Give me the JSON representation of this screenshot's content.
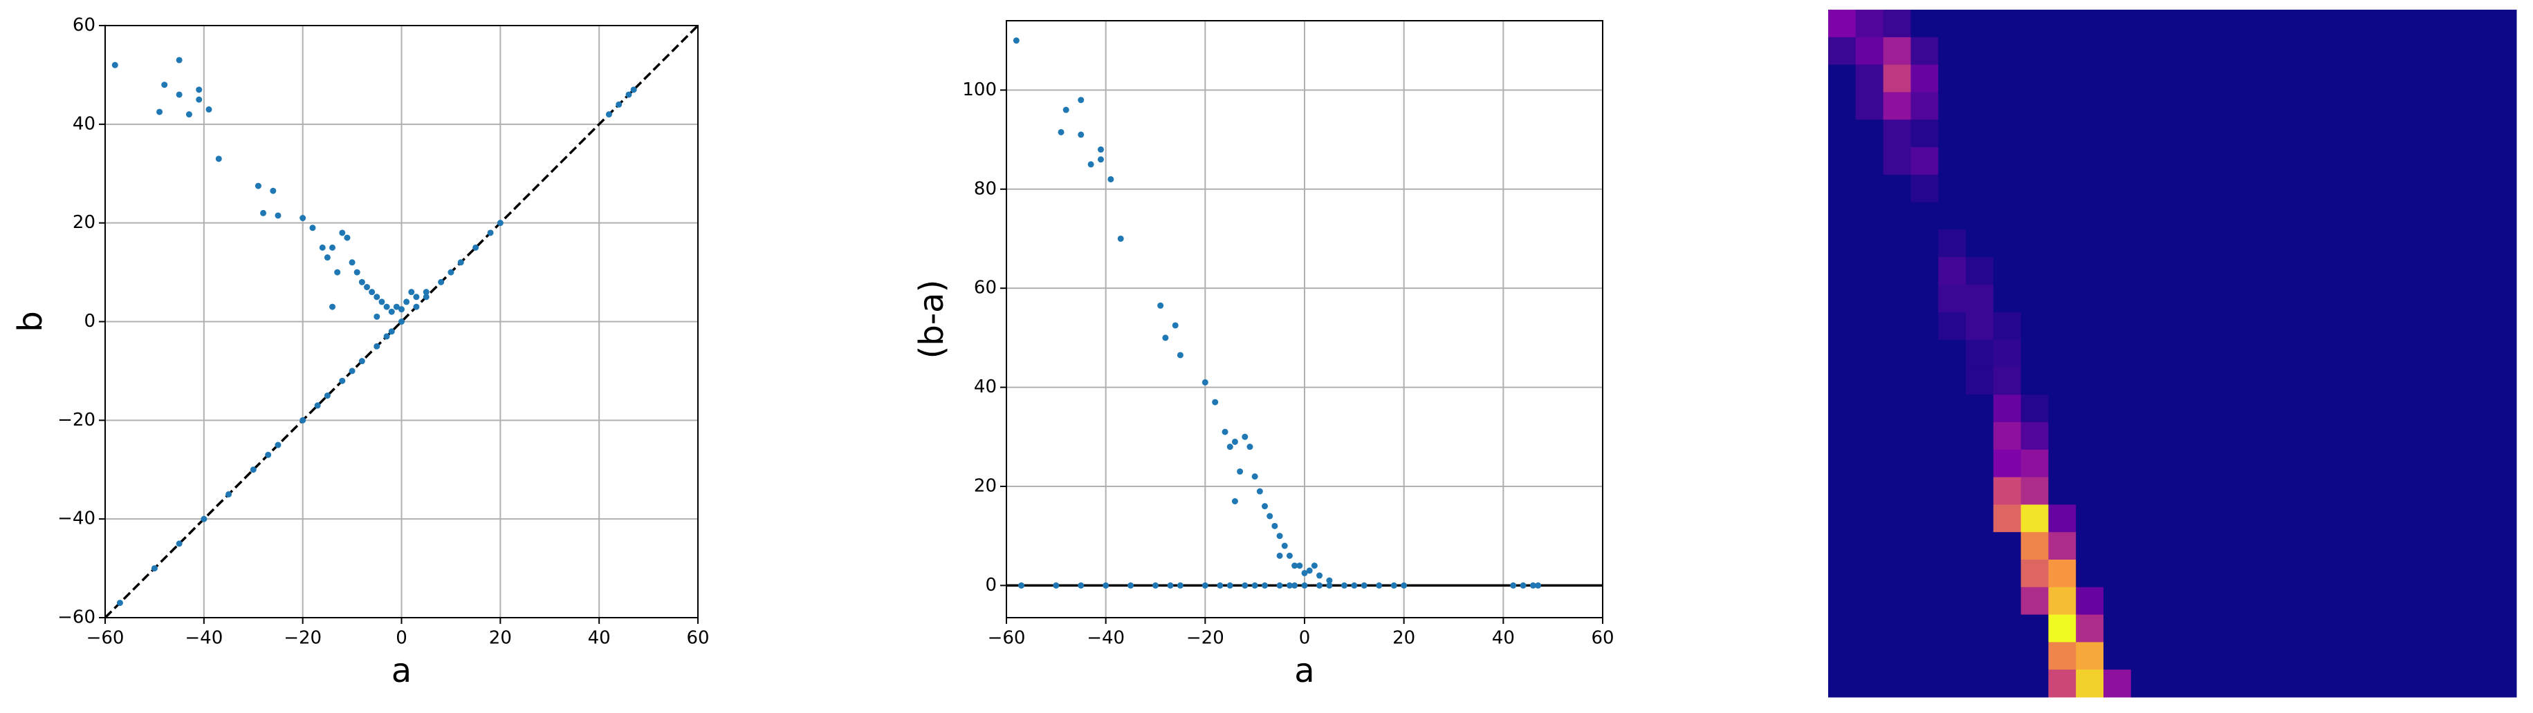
{
  "chart_data": [
    {
      "type": "scatter",
      "xlabel": "a",
      "ylabel": "b",
      "color": "#1f77b4",
      "grid": true,
      "diagonal": true,
      "xlim": [
        -60,
        60
      ],
      "ylim": [
        -60,
        60
      ],
      "xticks": [
        {
          "value": -60,
          "label": "−60"
        },
        {
          "value": -40,
          "label": "−40"
        },
        {
          "value": -20,
          "label": "−20"
        },
        0,
        20,
        40,
        60
      ],
      "yticks": [
        {
          "value": -60,
          "label": "−60"
        },
        {
          "value": -40,
          "label": "−40"
        },
        {
          "value": -20,
          "label": "−20"
        },
        0,
        20,
        40,
        60
      ],
      "x": [
        -58,
        -49,
        -48,
        -45,
        -45,
        -43,
        -41,
        -41,
        -39,
        -37,
        -29,
        -28,
        -26,
        -25,
        -20,
        -18,
        -16,
        -15,
        -14,
        -13,
        -12,
        -11,
        -14,
        -10,
        -9,
        -8,
        -7,
        -6,
        -5,
        -4,
        -3,
        -2,
        -1,
        0,
        1,
        2,
        3,
        5,
        -5,
        -2,
        -57,
        -50,
        -45,
        -40,
        -35,
        -30,
        -27,
        -25,
        -20,
        -17,
        -15,
        -12,
        -10,
        -8,
        -5,
        -3,
        0,
        3,
        5,
        8,
        10,
        12,
        15,
        18,
        20,
        42,
        44,
        46,
        47
      ],
      "y": [
        52,
        42.5,
        48,
        53,
        46,
        42,
        47,
        45,
        43,
        33,
        27.5,
        22,
        26.5,
        21.5,
        21,
        19,
        15,
        13,
        15,
        10,
        18,
        17,
        3,
        12,
        10,
        8,
        7,
        6,
        5,
        4,
        3,
        2,
        3,
        2.5,
        4,
        6,
        5,
        6,
        1,
        -2,
        -57,
        -50,
        -45,
        -40,
        -35,
        -30,
        -27,
        -25,
        -20,
        -17,
        -15,
        -12,
        -10,
        -8,
        -5,
        -3,
        0,
        3,
        5,
        8,
        10,
        12,
        15,
        18,
        20,
        42,
        44,
        46,
        47
      ]
    },
    {
      "type": "scatter",
      "xlabel": "a",
      "ylabel": "(b-a)",
      "color": "#1f77b4",
      "grid": true,
      "hline": 0,
      "xlim": [
        -60,
        60
      ],
      "ylim": [
        -6.5,
        114
      ],
      "xticks": [
        {
          "value": -60,
          "label": "−60"
        },
        {
          "value": -40,
          "label": "−40"
        },
        {
          "value": -20,
          "label": "−20"
        },
        0,
        20,
        40,
        60
      ],
      "yticks": [
        0,
        20,
        40,
        60,
        80,
        100
      ],
      "x": [
        -58,
        -49,
        -48,
        -45,
        -45,
        -43,
        -41,
        -41,
        -39,
        -37,
        -29,
        -28,
        -26,
        -25,
        -20,
        -18,
        -16,
        -15,
        -14,
        -13,
        -12,
        -11,
        -14,
        -10,
        -9,
        -8,
        -7,
        -6,
        -5,
        -4,
        -3,
        -2,
        -1,
        0,
        1,
        2,
        3,
        5,
        -5,
        -2,
        -57,
        -50,
        -45,
        -40,
        -35,
        -30,
        -27,
        -25,
        -20,
        -17,
        -15,
        -12,
        -10,
        -8,
        -5,
        -3,
        0,
        3,
        5,
        8,
        10,
        12,
        15,
        18,
        20,
        42,
        44,
        46,
        47
      ],
      "y": [
        110,
        91.5,
        96,
        98,
        91,
        85,
        88,
        86,
        82,
        70,
        56.5,
        50,
        52.5,
        46.5,
        41,
        37,
        31,
        28,
        29,
        23,
        30,
        28,
        17,
        22,
        19,
        16,
        14,
        12,
        10,
        8,
        6,
        4,
        4,
        2.5,
        3,
        4,
        2,
        1,
        6,
        0,
        0,
        0,
        0,
        0,
        0,
        0,
        0,
        0,
        0,
        0,
        0,
        0,
        0,
        0,
        0,
        0,
        0,
        0,
        0,
        0,
        0,
        0,
        0,
        0,
        0,
        0,
        0,
        0,
        0
      ]
    },
    {
      "type": "heatmap",
      "zlim": [
        0,
        1
      ],
      "colormap": [
        "#0d0887",
        "#7e03a8",
        "#cc4778",
        "#f89540",
        "#f0f921"
      ],
      "values": [
        [
          0.25,
          0.15,
          0.1,
          0,
          0,
          0,
          0,
          0,
          0,
          0,
          0,
          0,
          0,
          0,
          0,
          0,
          0,
          0,
          0,
          0,
          0,
          0,
          0,
          0,
          0
        ],
        [
          0.1,
          0.2,
          0.35,
          0.1,
          0,
          0,
          0,
          0,
          0,
          0,
          0,
          0,
          0,
          0,
          0,
          0,
          0,
          0,
          0,
          0,
          0,
          0,
          0,
          0,
          0
        ],
        [
          0,
          0.1,
          0.45,
          0.2,
          0,
          0,
          0,
          0,
          0,
          0,
          0,
          0,
          0,
          0,
          0,
          0,
          0,
          0,
          0,
          0,
          0,
          0,
          0,
          0,
          0
        ],
        [
          0,
          0.1,
          0.3,
          0.15,
          0,
          0,
          0,
          0,
          0,
          0,
          0,
          0,
          0,
          0,
          0,
          0,
          0,
          0,
          0,
          0,
          0,
          0,
          0,
          0,
          0
        ],
        [
          0,
          0,
          0.1,
          0.05,
          0,
          0,
          0,
          0,
          0,
          0,
          0,
          0,
          0,
          0,
          0,
          0,
          0,
          0,
          0,
          0,
          0,
          0,
          0,
          0,
          0
        ],
        [
          0,
          0,
          0.1,
          0.15,
          0,
          0,
          0,
          0,
          0,
          0,
          0,
          0,
          0,
          0,
          0,
          0,
          0,
          0,
          0,
          0,
          0,
          0,
          0,
          0,
          0
        ],
        [
          0,
          0,
          0,
          0.05,
          0,
          0,
          0,
          0,
          0,
          0,
          0,
          0,
          0,
          0,
          0,
          0,
          0,
          0,
          0,
          0,
          0,
          0,
          0,
          0,
          0
        ],
        [
          0,
          0,
          0,
          0,
          0,
          0,
          0,
          0,
          0,
          0,
          0,
          0,
          0,
          0,
          0,
          0,
          0,
          0,
          0,
          0,
          0,
          0,
          0,
          0,
          0
        ],
        [
          0,
          0,
          0,
          0,
          0.05,
          0,
          0,
          0,
          0,
          0,
          0,
          0,
          0,
          0,
          0,
          0,
          0,
          0,
          0,
          0,
          0,
          0,
          0,
          0,
          0
        ],
        [
          0,
          0,
          0,
          0,
          0.12,
          0.05,
          0,
          0,
          0,
          0,
          0,
          0,
          0,
          0,
          0,
          0,
          0,
          0,
          0,
          0,
          0,
          0,
          0,
          0,
          0
        ],
        [
          0,
          0,
          0,
          0,
          0.1,
          0.1,
          0,
          0,
          0,
          0,
          0,
          0,
          0,
          0,
          0,
          0,
          0,
          0,
          0,
          0,
          0,
          0,
          0,
          0,
          0
        ],
        [
          0,
          0,
          0,
          0,
          0.05,
          0.1,
          0.05,
          0,
          0,
          0,
          0,
          0,
          0,
          0,
          0,
          0,
          0,
          0,
          0,
          0,
          0,
          0,
          0,
          0,
          0
        ],
        [
          0,
          0,
          0,
          0,
          0,
          0.05,
          0.08,
          0,
          0,
          0,
          0,
          0,
          0,
          0,
          0,
          0,
          0,
          0,
          0,
          0,
          0,
          0,
          0,
          0,
          0
        ],
        [
          0,
          0,
          0,
          0,
          0,
          0.05,
          0.1,
          0,
          0,
          0,
          0,
          0,
          0,
          0,
          0,
          0,
          0,
          0,
          0,
          0,
          0,
          0,
          0,
          0,
          0
        ],
        [
          0,
          0,
          0,
          0,
          0,
          0,
          0.2,
          0.05,
          0,
          0,
          0,
          0,
          0,
          0,
          0,
          0,
          0,
          0,
          0,
          0,
          0,
          0,
          0,
          0,
          0
        ],
        [
          0,
          0,
          0,
          0,
          0,
          0,
          0.3,
          0.15,
          0,
          0,
          0,
          0,
          0,
          0,
          0,
          0,
          0,
          0,
          0,
          0,
          0,
          0,
          0,
          0,
          0
        ],
        [
          0,
          0,
          0,
          0,
          0,
          0,
          0.25,
          0.3,
          0,
          0,
          0,
          0,
          0,
          0,
          0,
          0,
          0,
          0,
          0,
          0,
          0,
          0,
          0,
          0,
          0
        ],
        [
          0,
          0,
          0,
          0,
          0,
          0,
          0.5,
          0.4,
          0,
          0,
          0,
          0,
          0,
          0,
          0,
          0,
          0,
          0,
          0,
          0,
          0,
          0,
          0,
          0,
          0
        ],
        [
          0,
          0,
          0,
          0,
          0,
          0,
          0.6,
          0.95,
          0.2,
          0,
          0,
          0,
          0,
          0,
          0,
          0,
          0,
          0,
          0,
          0,
          0,
          0,
          0,
          0,
          0
        ],
        [
          0,
          0,
          0,
          0,
          0,
          0,
          0,
          0.7,
          0.4,
          0,
          0,
          0,
          0,
          0,
          0,
          0,
          0,
          0,
          0,
          0,
          0,
          0,
          0,
          0,
          0
        ],
        [
          0,
          0,
          0,
          0,
          0,
          0,
          0,
          0.6,
          0.75,
          0,
          0,
          0,
          0,
          0,
          0,
          0,
          0,
          0,
          0,
          0,
          0,
          0,
          0,
          0,
          0
        ],
        [
          0,
          0,
          0,
          0,
          0,
          0,
          0,
          0.4,
          0.85,
          0.2,
          0,
          0,
          0,
          0,
          0,
          0,
          0,
          0,
          0,
          0,
          0,
          0,
          0,
          0,
          0
        ],
        [
          0,
          0,
          0,
          0,
          0,
          0,
          0,
          0,
          1,
          0.4,
          0,
          0,
          0,
          0,
          0,
          0,
          0,
          0,
          0,
          0,
          0,
          0,
          0,
          0,
          0
        ],
        [
          0,
          0,
          0,
          0,
          0,
          0,
          0,
          0,
          0.7,
          0.8,
          0,
          0,
          0,
          0,
          0,
          0,
          0,
          0,
          0,
          0,
          0,
          0,
          0,
          0,
          0
        ],
        [
          0,
          0,
          0,
          0,
          0,
          0,
          0,
          0,
          0.5,
          0.9,
          0.3,
          0,
          0,
          0,
          0,
          0,
          0,
          0,
          0,
          0,
          0,
          0,
          0,
          0,
          0
        ]
      ]
    }
  ]
}
